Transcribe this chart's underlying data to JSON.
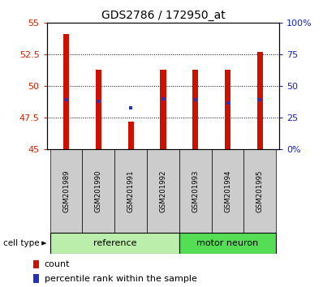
{
  "title": "GDS2786 / 172950_at",
  "samples": [
    "GSM201989",
    "GSM201990",
    "GSM201991",
    "GSM201992",
    "GSM201993",
    "GSM201994",
    "GSM201995"
  ],
  "bar_bottoms": [
    45,
    45,
    45,
    45,
    45,
    45,
    45
  ],
  "bar_tops": [
    54.1,
    51.3,
    47.2,
    51.3,
    51.3,
    51.3,
    52.7
  ],
  "percentile_values": [
    48.9,
    48.8,
    48.3,
    49.0,
    48.9,
    48.65,
    48.9
  ],
  "ylim_left": [
    45,
    55
  ],
  "ylim_right": [
    0,
    100
  ],
  "yticks_left": [
    45,
    47.5,
    50,
    52.5,
    55
  ],
  "yticks_right": [
    0,
    25,
    50,
    75,
    100
  ],
  "ytick_labels_left": [
    "45",
    "47.5",
    "50",
    "52.5",
    "55"
  ],
  "ytick_labels_right": [
    "0%",
    "25",
    "50",
    "75",
    "100%"
  ],
  "bar_color": "#cc1100",
  "percentile_color": "#2233bb",
  "ref_group_color": "#bbeeaa",
  "motor_group_color": "#55dd55",
  "label_box_color": "#cccccc",
  "ref_group_label": "reference",
  "motor_group_label": "motor neuron",
  "cell_type_label": "cell type",
  "legend_count_label": "count",
  "legend_percentile_label": "percentile rank within the sample",
  "left_tick_color": "#cc2200",
  "right_tick_color": "#1122cc",
  "bar_width": 0.18,
  "n_ref": 4,
  "n_motor": 3
}
